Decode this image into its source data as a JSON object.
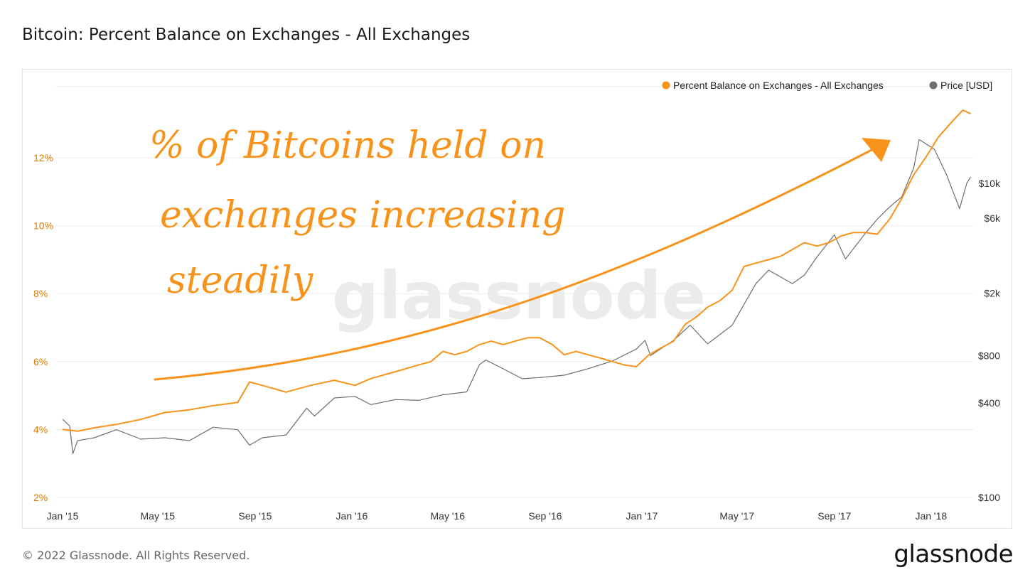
{
  "title": "Bitcoin: Percent Balance on Exchanges - All Exchanges",
  "footer": "© 2022 Glassnode. All Rights Reserved.",
  "brand": "glassnode",
  "watermark": "glassnode",
  "annotation": {
    "line1": "% of Bitcoins held on",
    "line2": "exchanges increasing",
    "line3": "steadily",
    "color": "#f7931a"
  },
  "colors": {
    "balance": "#f7931a",
    "price": "#6e6e6e",
    "axis_left": "#e07b00",
    "grid": "#ececec"
  },
  "chart_data": {
    "type": "line",
    "title": "Bitcoin: Percent Balance on Exchanges - All Exchanges",
    "xlabel": "",
    "ylabel": "",
    "x_ticks": [
      "Jan '15",
      "May '15",
      "Sep '15",
      "Jan '16",
      "May '16",
      "Sep '16",
      "Jan '17",
      "May '17",
      "Sep '17",
      "Jan '18"
    ],
    "y_left": {
      "ticks": [
        "2%",
        "4%",
        "6%",
        "8%",
        "10%",
        "12%"
      ],
      "range": [
        2,
        14.1
      ]
    },
    "y_right": {
      "ticks": [
        "$100",
        "$400",
        "$800",
        "$2k",
        "$6k",
        "$10k"
      ],
      "scale": "log"
    },
    "legend": {
      "placement": "top-right",
      "entries": [
        "Percent Balance on Exchanges - All Exchanges",
        "Price [USD]"
      ]
    },
    "grid": true,
    "series": [
      {
        "name": "Percent Balance on Exchanges - All Exchanges",
        "axis": "left",
        "x": [
          "2015-01-01",
          "2015-01-20",
          "2015-02-10",
          "2015-03-10",
          "2015-04-10",
          "2015-05-10",
          "2015-06-10",
          "2015-07-10",
          "2015-08-10",
          "2015-08-25",
          "2015-09-10",
          "2015-10-10",
          "2015-11-10",
          "2015-12-10",
          "2016-01-05",
          "2016-01-25",
          "2016-02-25",
          "2016-03-25",
          "2016-04-10",
          "2016-04-25",
          "2016-05-10",
          "2016-05-25",
          "2016-06-10",
          "2016-06-25",
          "2016-07-10",
          "2016-07-25",
          "2016-08-10",
          "2016-08-25",
          "2016-09-10",
          "2016-09-25",
          "2016-10-10",
          "2016-10-25",
          "2016-11-10",
          "2016-11-25",
          "2016-12-10",
          "2016-12-25",
          "2017-01-10",
          "2017-01-25",
          "2017-02-10",
          "2017-02-25",
          "2017-03-10",
          "2017-03-25",
          "2017-04-10",
          "2017-04-25",
          "2017-05-10",
          "2017-05-25",
          "2017-06-10",
          "2017-06-25",
          "2017-07-10",
          "2017-07-25",
          "2017-08-10",
          "2017-08-25",
          "2017-09-10",
          "2017-09-25",
          "2017-10-10",
          "2017-10-25",
          "2017-11-10",
          "2017-11-25",
          "2017-12-10",
          "2017-12-25",
          "2018-01-10",
          "2018-01-25",
          "2018-02-10",
          "2018-02-20"
        ],
        "y": [
          4.0,
          3.95,
          4.05,
          4.15,
          4.3,
          4.5,
          4.58,
          4.7,
          4.8,
          5.4,
          5.3,
          5.1,
          5.3,
          5.45,
          5.3,
          5.5,
          5.7,
          5.9,
          6.0,
          6.3,
          6.2,
          6.3,
          6.5,
          6.6,
          6.5,
          6.6,
          6.7,
          6.7,
          6.5,
          6.2,
          6.3,
          6.2,
          6.1,
          6.0,
          5.9,
          5.85,
          6.2,
          6.4,
          6.6,
          7.1,
          7.3,
          7.6,
          7.8,
          8.1,
          8.8,
          8.9,
          9.0,
          9.1,
          9.3,
          9.5,
          9.4,
          9.5,
          9.7,
          9.8,
          9.8,
          9.75,
          10.2,
          10.8,
          11.5,
          12.0,
          12.6,
          13.0,
          13.4,
          13.3
        ]
      },
      {
        "name": "Price [USD]",
        "axis": "right",
        "x": [
          "2015-01-01",
          "2015-01-10",
          "2015-01-14",
          "2015-01-20",
          "2015-02-10",
          "2015-03-10",
          "2015-04-10",
          "2015-05-10",
          "2015-06-10",
          "2015-07-10",
          "2015-08-10",
          "2015-08-25",
          "2015-09-10",
          "2015-10-10",
          "2015-11-05",
          "2015-11-15",
          "2015-12-10",
          "2016-01-05",
          "2016-01-25",
          "2016-02-25",
          "2016-03-25",
          "2016-04-25",
          "2016-05-25",
          "2016-06-10",
          "2016-06-18",
          "2016-07-10",
          "2016-08-03",
          "2016-08-25",
          "2016-09-25",
          "2016-10-25",
          "2016-11-25",
          "2016-12-25",
          "2017-01-05",
          "2017-01-12",
          "2017-02-10",
          "2017-03-03",
          "2017-03-25",
          "2017-04-25",
          "2017-05-25",
          "2017-06-10",
          "2017-07-10",
          "2017-07-25",
          "2017-08-10",
          "2017-09-01",
          "2017-09-15",
          "2017-10-10",
          "2017-10-25",
          "2017-11-10",
          "2017-11-25",
          "2017-12-10",
          "2017-12-17",
          "2018-01-05",
          "2018-01-20",
          "2018-02-06",
          "2018-02-15",
          "2018-02-20"
        ],
        "y": [
          315,
          285,
          190,
          230,
          240,
          270,
          235,
          240,
          230,
          280,
          270,
          215,
          240,
          250,
          370,
          330,
          430,
          440,
          390,
          420,
          415,
          450,
          470,
          700,
          750,
          660,
          570,
          580,
          600,
          660,
          740,
          880,
          1000,
          800,
          1000,
          1250,
          950,
          1250,
          2300,
          2800,
          2300,
          2600,
          3400,
          4700,
          3300,
          4800,
          5900,
          7100,
          8200,
          12500,
          19000,
          16500,
          11500,
          6900,
          10000,
          11000
        ]
      }
    ]
  }
}
